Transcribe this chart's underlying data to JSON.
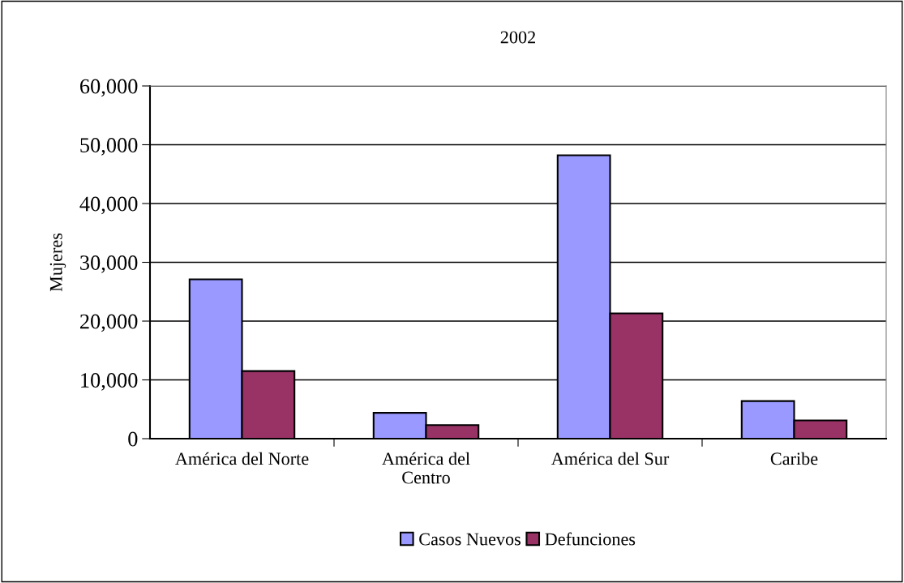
{
  "chart_data": {
    "type": "bar",
    "title": "2002",
    "ylabel": "Mujeres",
    "categories": [
      "América del Norte",
      "América del\nCentro",
      "América del Sur",
      "Caribe"
    ],
    "series": [
      {
        "name": "Casos Nuevos",
        "color": "#9999ff",
        "values": [
          27100,
          4400,
          48200,
          6400
        ]
      },
      {
        "name": "Defunciones",
        "color": "#993366",
        "values": [
          11500,
          2300,
          21300,
          3100
        ]
      }
    ],
    "ylim": [
      0,
      60000
    ],
    "yticks": [
      {
        "value": 0,
        "label": "0"
      },
      {
        "value": 10000,
        "label": "10,000"
      },
      {
        "value": 20000,
        "label": "20,000"
      },
      {
        "value": 30000,
        "label": "30,000"
      },
      {
        "value": 40000,
        "label": "40,000"
      },
      {
        "value": 50000,
        "label": "50,000"
      },
      {
        "value": 60000,
        "label": "60,000"
      }
    ],
    "grid": "y",
    "legend": "bottom"
  }
}
